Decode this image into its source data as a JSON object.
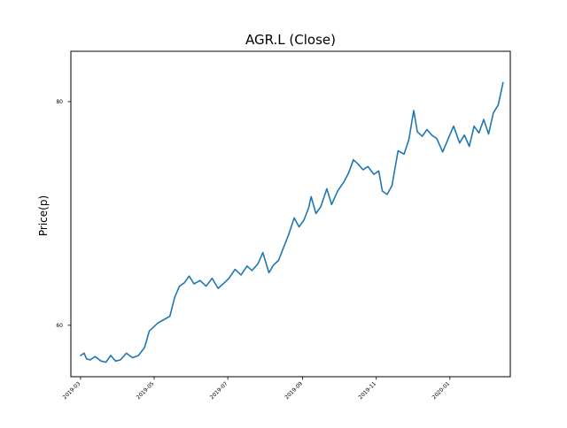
{
  "chart_data": {
    "type": "line",
    "title": "AGR.L (Close)",
    "xlabel": "",
    "ylabel": "Price(p)",
    "x_axis_kind": "date",
    "xlim": [
      "2019-02-21",
      "2020-02-20"
    ],
    "ylim": [
      55.4,
      84.5
    ],
    "x_ticks": [
      "2019-03",
      "2019-05",
      "2019-07",
      "2019-09",
      "2019-11",
      "2020-01"
    ],
    "y_ticks": [
      60,
      80
    ],
    "grid": false,
    "legend": false,
    "colors": {
      "line": "#1f77b4",
      "axes": "#000000",
      "background": "#ffffff"
    },
    "series": [
      {
        "x": [
          "2019-03-01",
          "2019-03-04",
          "2019-03-06",
          "2019-03-09",
          "2019-03-13",
          "2019-03-18",
          "2019-03-22",
          "2019-03-26",
          "2019-03-30",
          "2019-04-03",
          "2019-04-08",
          "2019-04-13",
          "2019-04-18",
          "2019-04-23",
          "2019-04-27",
          "2019-04-30",
          "2019-05-04",
          "2019-05-09",
          "2019-05-14",
          "2019-05-18",
          "2019-05-22",
          "2019-05-26",
          "2019-05-30",
          "2019-06-03",
          "2019-06-08",
          "2019-06-13",
          "2019-06-18",
          "2019-06-23",
          "2019-06-28",
          "2019-07-02",
          "2019-07-07",
          "2019-07-12",
          "2019-07-17",
          "2019-07-21",
          "2019-07-26",
          "2019-07-30",
          "2019-08-04",
          "2019-08-08",
          "2019-08-12",
          "2019-08-16",
          "2019-08-20",
          "2019-08-25",
          "2019-08-29",
          "2019-09-02",
          "2019-09-06",
          "2019-09-08",
          "2019-09-12",
          "2019-09-16",
          "2019-09-21",
          "2019-09-25",
          "2019-09-30",
          "2019-10-05",
          "2019-10-09",
          "2019-10-13",
          "2019-10-17",
          "2019-10-21",
          "2019-10-25",
          "2019-10-30",
          "2019-11-03",
          "2019-11-06",
          "2019-11-10",
          "2019-11-14",
          "2019-11-19",
          "2019-11-24",
          "2019-11-28",
          "2019-12-02",
          "2019-12-05",
          "2019-12-09",
          "2019-12-13",
          "2019-12-17",
          "2019-12-21",
          "2019-12-26",
          "2019-12-31",
          "2020-01-04",
          "2020-01-09",
          "2020-01-13",
          "2020-01-17",
          "2020-01-21",
          "2020-01-25",
          "2020-01-29",
          "2020-02-02",
          "2020-02-06",
          "2020-02-10",
          "2020-02-14"
        ],
        "values": [
          57.3,
          57.5,
          57.0,
          56.9,
          57.2,
          56.8,
          56.7,
          57.3,
          56.8,
          56.9,
          57.5,
          57.1,
          57.3,
          58.0,
          59.5,
          59.8,
          60.2,
          60.5,
          60.8,
          62.5,
          63.5,
          63.8,
          64.4,
          63.7,
          64.0,
          63.5,
          64.2,
          63.3,
          63.8,
          64.2,
          65.0,
          64.5,
          65.3,
          64.9,
          65.5,
          66.5,
          64.7,
          65.4,
          65.8,
          66.9,
          68.0,
          69.6,
          68.8,
          69.4,
          70.5,
          71.5,
          70.0,
          70.6,
          72.2,
          70.8,
          72.0,
          72.8,
          73.6,
          74.8,
          74.4,
          73.9,
          74.2,
          73.5,
          73.8,
          72.0,
          71.7,
          72.5,
          75.6,
          75.3,
          76.6,
          79.2,
          77.3,
          76.9,
          77.5,
          77.0,
          76.7,
          75.5,
          76.8,
          77.8,
          76.3,
          77.0,
          76.0,
          77.8,
          77.2,
          78.4,
          77.1,
          79.0,
          79.7,
          81.7
        ]
      }
    ]
  }
}
